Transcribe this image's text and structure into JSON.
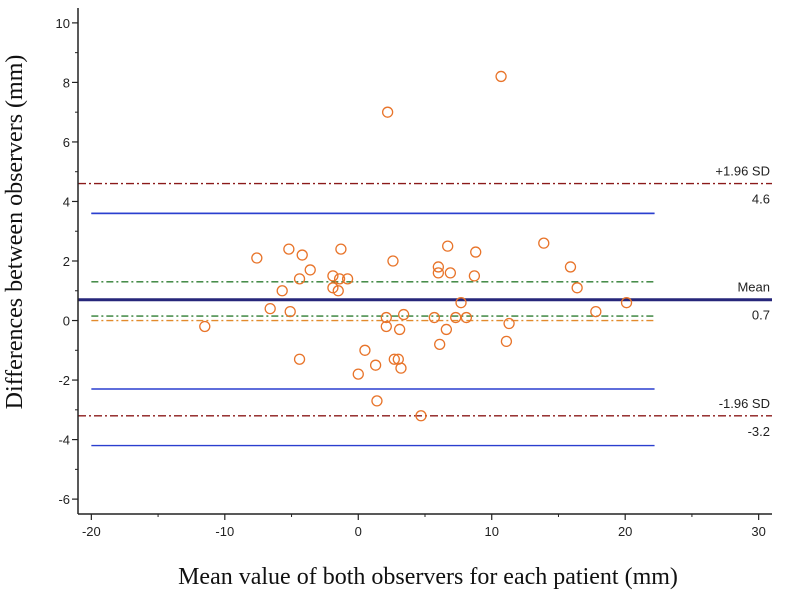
{
  "chart_data": {
    "type": "scatter",
    "title": "",
    "xlabel": "Mean value of both observers for each patient (mm)",
    "ylabel": "Differences between observers (mm)",
    "xlim": [
      -21,
      31
    ],
    "ylim": [
      -6.5,
      10.5
    ],
    "x_ticks": [
      -20,
      -10,
      0,
      10,
      20,
      30
    ],
    "y_ticks": [
      -6,
      -4,
      -2,
      0,
      2,
      4,
      6,
      8,
      10
    ],
    "points": [
      {
        "x": 10.7,
        "y": 8.2
      },
      {
        "x": 2.2,
        "y": 7.0
      },
      {
        "x": 13.9,
        "y": 2.6
      },
      {
        "x": -7.6,
        "y": 2.1
      },
      {
        "x": -5.2,
        "y": 2.4
      },
      {
        "x": -4.2,
        "y": 2.2
      },
      {
        "x": -1.3,
        "y": 2.4
      },
      {
        "x": 2.6,
        "y": 2.0
      },
      {
        "x": 6.7,
        "y": 2.5
      },
      {
        "x": 8.8,
        "y": 2.3
      },
      {
        "x": 15.9,
        "y": 1.8
      },
      {
        "x": -3.6,
        "y": 1.7
      },
      {
        "x": -1.9,
        "y": 1.5
      },
      {
        "x": -1.4,
        "y": 1.4
      },
      {
        "x": -0.8,
        "y": 1.4
      },
      {
        "x": -4.4,
        "y": 1.4
      },
      {
        "x": 6.0,
        "y": 1.8
      },
      {
        "x": 6.0,
        "y": 1.6
      },
      {
        "x": 6.9,
        "y": 1.6
      },
      {
        "x": 8.7,
        "y": 1.5
      },
      {
        "x": -5.7,
        "y": 1.0
      },
      {
        "x": -1.9,
        "y": 1.1
      },
      {
        "x": -1.5,
        "y": 1.0
      },
      {
        "x": 16.4,
        "y": 1.1
      },
      {
        "x": 7.7,
        "y": 0.6
      },
      {
        "x": 20.1,
        "y": 0.6
      },
      {
        "x": -6.6,
        "y": 0.4
      },
      {
        "x": -5.1,
        "y": 0.3
      },
      {
        "x": 3.4,
        "y": 0.2
      },
      {
        "x": 17.8,
        "y": 0.3
      },
      {
        "x": 2.1,
        "y": 0.1
      },
      {
        "x": 5.7,
        "y": 0.1
      },
      {
        "x": 7.3,
        "y": 0.1
      },
      {
        "x": 8.1,
        "y": 0.1
      },
      {
        "x": -11.5,
        "y": -0.2
      },
      {
        "x": 2.1,
        "y": -0.2
      },
      {
        "x": 3.1,
        "y": -0.3
      },
      {
        "x": 6.6,
        "y": -0.3
      },
      {
        "x": 11.3,
        "y": -0.1
      },
      {
        "x": 6.1,
        "y": -0.8
      },
      {
        "x": 11.1,
        "y": -0.7
      },
      {
        "x": 0.5,
        "y": -1.0
      },
      {
        "x": -4.4,
        "y": -1.3
      },
      {
        "x": 3.0,
        "y": -1.3
      },
      {
        "x": 2.7,
        "y": -1.3
      },
      {
        "x": 1.3,
        "y": -1.5
      },
      {
        "x": 3.2,
        "y": -1.6
      },
      {
        "x": 0.0,
        "y": -1.8
      },
      {
        "x": 1.4,
        "y": -2.7
      },
      {
        "x": 4.7,
        "y": -3.2
      }
    ],
    "reference_lines": [
      {
        "name": "upper-limit",
        "y": 4.6,
        "label_top": "+1.96 SD",
        "label_bottom": "4.6",
        "style": "dash-dot",
        "color": "#8b1a1a"
      },
      {
        "name": "mean",
        "y": 0.7,
        "label_top": "Mean",
        "label_bottom": "0.7",
        "style": "solid-bold",
        "color": "#26267a"
      },
      {
        "name": "lower-limit",
        "y": -3.2,
        "label_top": "-1.96 SD",
        "label_bottom": "-3.2",
        "style": "dash-dot",
        "color": "#8b1a1a"
      }
    ],
    "confidence_lines": [
      {
        "name": "upper-limit-ci-upper",
        "y": 3.6,
        "color": "#2a3fcf"
      },
      {
        "name": "upper-limit-ci-lower",
        "y": 3.6,
        "color": "#2a3fcf"
      },
      {
        "name": "lower-limit-ci-upper",
        "y": -2.3,
        "color": "#2a3fcf"
      },
      {
        "name": "lower-limit-ci-lower",
        "y": -4.2,
        "color": "#2a3fcf"
      },
      {
        "name": "mean-ci-upper",
        "y": 1.3,
        "color": "#2e7d32",
        "style": "dash-dot"
      },
      {
        "name": "mean-ci-lower",
        "y": 0.15,
        "color": "#2e7d32",
        "style": "dash-dot"
      },
      {
        "name": "zero-line",
        "y": 0.0,
        "color": "#e38b2c",
        "style": "dash-dot"
      }
    ],
    "confidence_x_extent": [
      -20,
      22.2
    ],
    "colors": {
      "point": "#e8742a",
      "axis": "#222222"
    }
  }
}
